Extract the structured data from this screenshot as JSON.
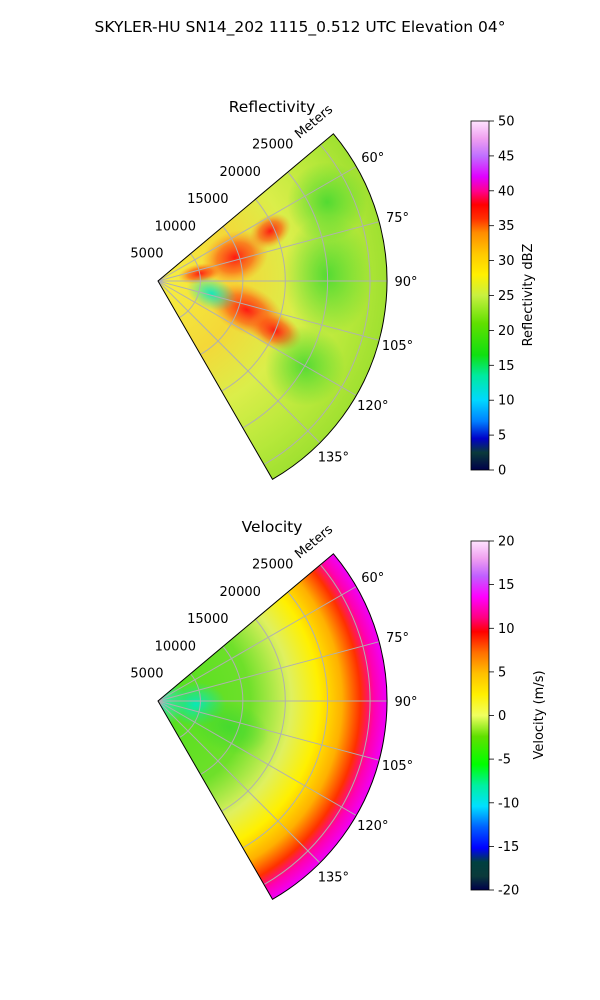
{
  "figure": {
    "suptitle": "SKYLER-HU  SN14_202  1115_0.512 UTC Elevation 04°"
  },
  "chart_data": [
    {
      "type": "heatmap",
      "subtype": "radar-ppi-sector",
      "title": "Reflectivity",
      "range_label": "Meters",
      "range_ticks": [
        5000,
        10000,
        15000,
        20000,
        25000
      ],
      "range_tick_labels": [
        "5000",
        "10000",
        "15000",
        "20000",
        "25000"
      ],
      "rlim": [
        0,
        27000
      ],
      "azimuth_range_deg": [
        50,
        150
      ],
      "azimuth_ticks_deg": [
        60,
        75,
        90,
        105,
        120,
        135
      ],
      "azimuth_tick_labels": [
        "60°",
        "75°",
        "90°",
        "105°",
        "120°",
        "135°"
      ],
      "grid": true,
      "colorbar": {
        "label": "Reflectivity dBZ",
        "min": 0,
        "max": 50,
        "ticks": [
          0,
          5,
          10,
          15,
          20,
          25,
          30,
          35,
          40,
          45,
          50
        ],
        "tick_labels": [
          "0",
          "5",
          "10",
          "15",
          "20",
          "25",
          "30",
          "35",
          "40",
          "45",
          "50"
        ],
        "colormap": "pyart_NWSRef-like"
      },
      "field_description": "mostly 18–28 dBZ echo filling the sector; maxima of ~35–38 dBZ near azimuth 70–75° at 7–12 km and near azimuth 100–110° at 10–16 km; weaker (~12–15 dBZ) echoes close to radar near azimuth 100°"
    },
    {
      "type": "heatmap",
      "subtype": "radar-ppi-sector",
      "title": "Velocity",
      "range_label": "Meters",
      "range_ticks": [
        5000,
        10000,
        15000,
        20000,
        25000
      ],
      "range_tick_labels": [
        "5000",
        "10000",
        "15000",
        "20000",
        "25000"
      ],
      "rlim": [
        0,
        27000
      ],
      "azimuth_range_deg": [
        50,
        150
      ],
      "azimuth_ticks_deg": [
        60,
        75,
        90,
        105,
        120,
        135
      ],
      "azimuth_tick_labels": [
        "60°",
        "75°",
        "90°",
        "105°",
        "120°",
        "135°"
      ],
      "grid": true,
      "colorbar": {
        "label": "Velocity (m/s)",
        "min": -20,
        "max": 20,
        "ticks": [
          -20,
          -15,
          -10,
          -5,
          0,
          5,
          10,
          15,
          20
        ],
        "tick_labels": [
          "-20",
          "-15",
          "-10",
          "-5",
          "0",
          "5",
          "10",
          "15",
          "20"
        ],
        "colormap": "pyart_NWSVel-like"
      },
      "field_description": "velocity increasing with range: about -10 m/s near radar, -5 m/s at 5–12 km, 0 to +3 m/s at 15–20 km, +10 to +15 m/s at 22–27 km, strongest near azimuth 60–100°"
    }
  ]
}
